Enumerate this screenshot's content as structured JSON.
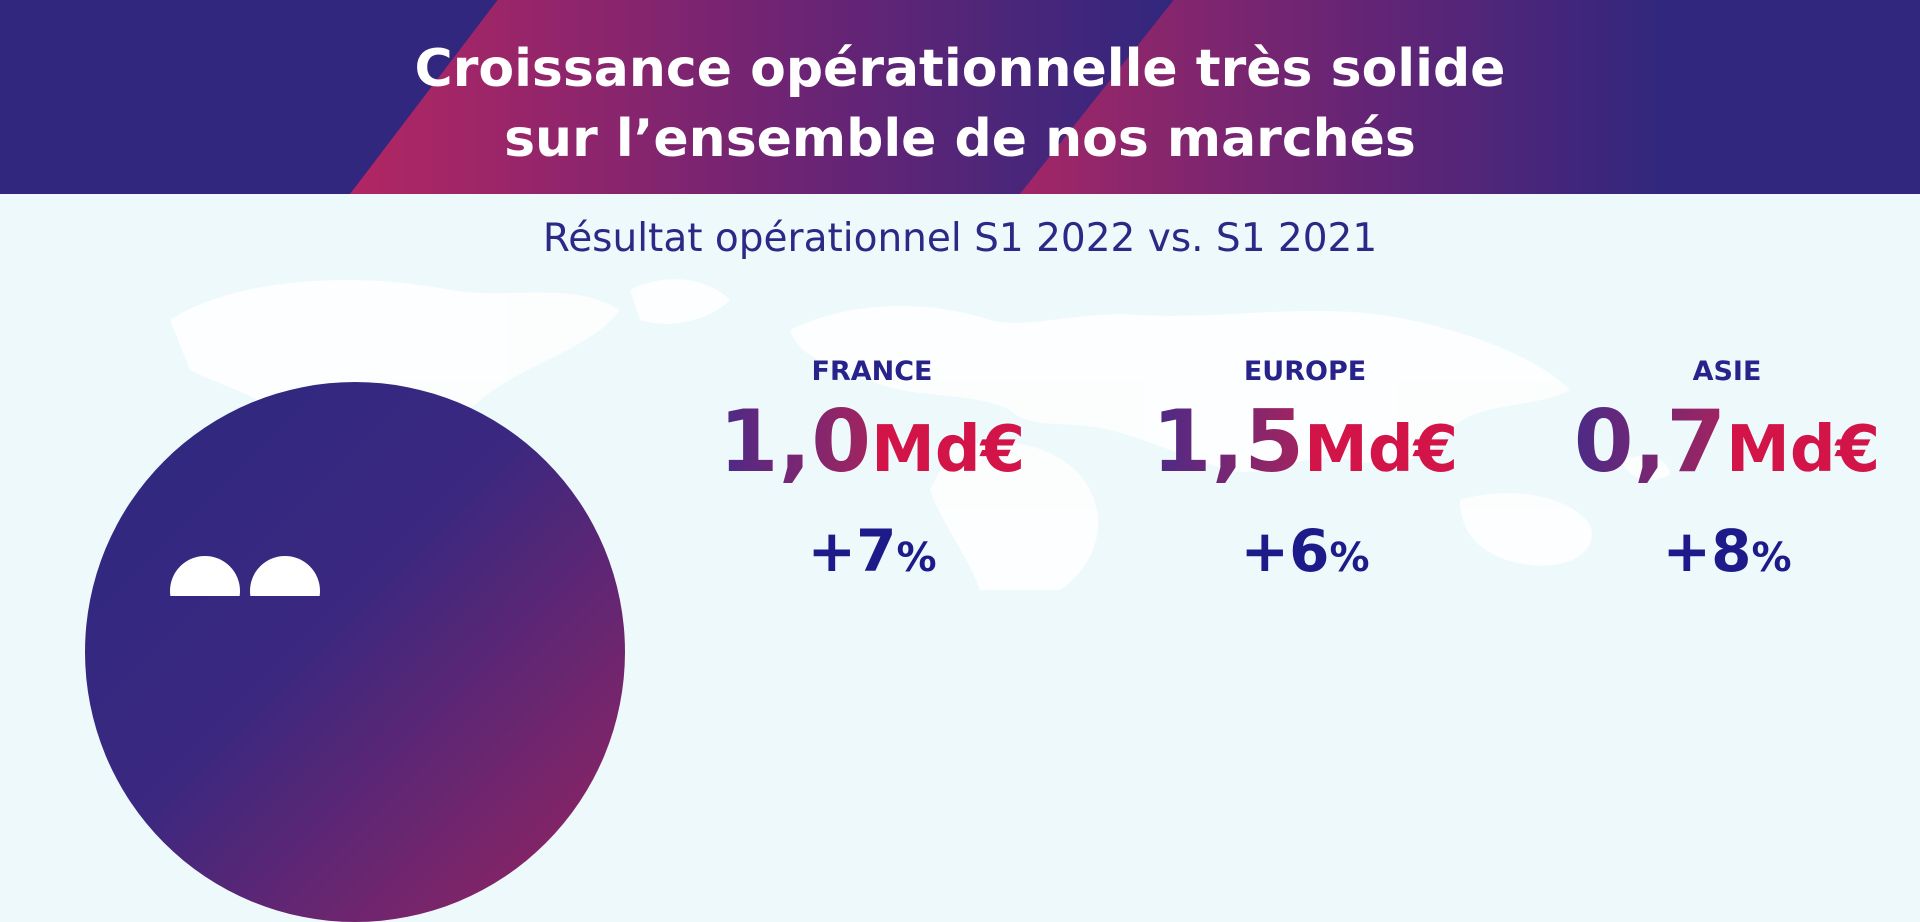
{
  "header": {
    "title_line1": "Croissance opérationnelle très solide",
    "title_line2": "sur l’ensemble de nos marchés"
  },
  "subtitle": "Résultat opérationnel S1 2022 vs. S1 2021",
  "regions": [
    {
      "label": "FRANCE",
      "value": "1,0",
      "unit": "Md€",
      "growth": "+7",
      "growth_unit": "%"
    },
    {
      "label": "EUROPE",
      "value": "1,5",
      "unit": "Md€",
      "growth": "+6",
      "growth_unit": "%"
    },
    {
      "label": "ASIE",
      "value": "0,7",
      "unit": "Md€",
      "growth": "+8",
      "growth_unit": "%"
    }
  ],
  "colors": {
    "header_bg": "#32277e",
    "accent_magenta": "#b22663",
    "unit_red": "#d21448",
    "label_navy": "#27238a",
    "background": "#eef9fc"
  }
}
